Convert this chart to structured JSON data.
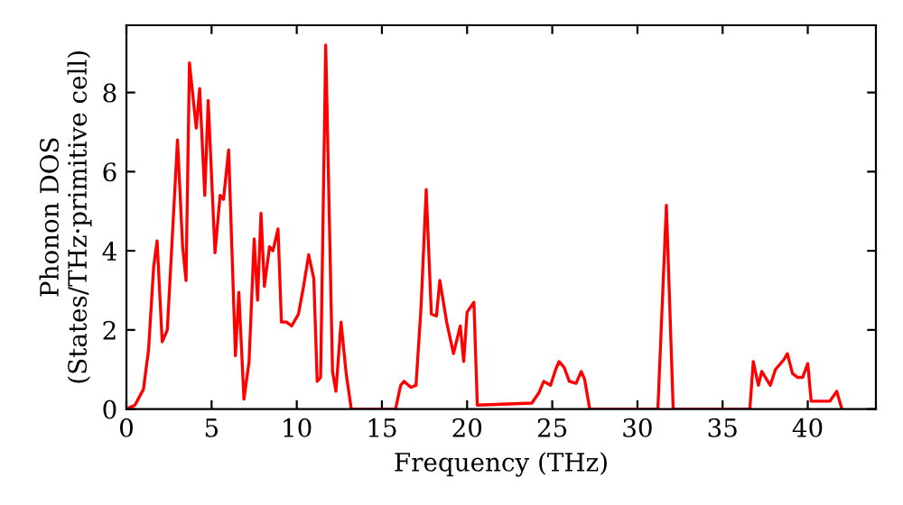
{
  "chart_data": {
    "type": "line",
    "xlabel": "Frequency (THz)",
    "ylabel": "Phonon DOS\n(States/THz·primitive cell)",
    "xlim": [
      0,
      44
    ],
    "ylim": [
      0,
      9.7
    ],
    "xticks": [
      0,
      5,
      10,
      15,
      20,
      25,
      30,
      35,
      40
    ],
    "yticks": [
      0,
      2,
      4,
      6,
      8
    ],
    "grid": false,
    "legend": false,
    "series": [
      {
        "color": "#ff0000",
        "x": [
          0,
          0.5,
          1,
          1.3,
          1.6,
          1.8,
          2.1,
          2.4,
          3.0,
          3.3,
          3.5,
          3.7,
          4.1,
          4.3,
          4.6,
          4.8,
          5.2,
          5.5,
          5.7,
          6.0,
          6.4,
          6.6,
          6.9,
          7.2,
          7.5,
          7.7,
          7.9,
          8.1,
          8.4,
          8.6,
          8.9,
          9.1,
          9.4,
          9.7,
          10.1,
          10.4,
          10.7,
          11.0,
          11.2,
          11.4,
          11.7,
          12.1,
          12.3,
          12.6,
          12.9,
          13.2,
          15.8,
          16.1,
          16.3,
          16.7,
          17.0,
          17.3,
          17.6,
          17.9,
          18.2,
          18.4,
          18.8,
          19.2,
          19.6,
          19.8,
          20.0,
          20.4,
          20.6,
          23.8,
          24.2,
          24.5,
          24.9,
          25.2,
          25.4,
          25.7,
          26.0,
          26.4,
          26.7,
          26.9,
          27.2,
          31.2,
          31.7,
          32.1,
          36.6,
          36.8,
          37.1,
          37.3,
          37.8,
          38.1,
          38.6,
          38.8,
          39.1,
          39.4,
          39.7,
          40.0,
          40.2,
          41.3,
          41.7,
          42.0
        ],
        "values": [
          0,
          0.1,
          0.5,
          1.5,
          3.6,
          4.25,
          1.7,
          2.0,
          6.8,
          4.1,
          3.25,
          8.75,
          7.1,
          8.1,
          5.4,
          7.8,
          3.95,
          5.4,
          5.3,
          6.55,
          1.35,
          2.95,
          0.25,
          1.2,
          4.3,
          2.75,
          4.95,
          3.1,
          4.1,
          4.0,
          4.55,
          2.2,
          2.2,
          2.1,
          2.4,
          3.1,
          3.9,
          3.3,
          0.7,
          0.8,
          9.2,
          0.95,
          0.45,
          2.2,
          0.9,
          0.0,
          0.0,
          0.6,
          0.7,
          0.55,
          0.6,
          2.6,
          5.55,
          2.4,
          2.35,
          3.25,
          2.2,
          1.4,
          2.1,
          1.2,
          2.45,
          2.7,
          0.1,
          0.15,
          0.4,
          0.7,
          0.6,
          1.0,
          1.2,
          1.05,
          0.7,
          0.65,
          0.95,
          0.75,
          0.0,
          0.0,
          5.15,
          0.0,
          0.0,
          1.2,
          0.6,
          0.95,
          0.6,
          1.0,
          1.25,
          1.4,
          0.9,
          0.8,
          0.8,
          1.15,
          0.2,
          0.2,
          0.45,
          0.0
        ]
      }
    ]
  }
}
